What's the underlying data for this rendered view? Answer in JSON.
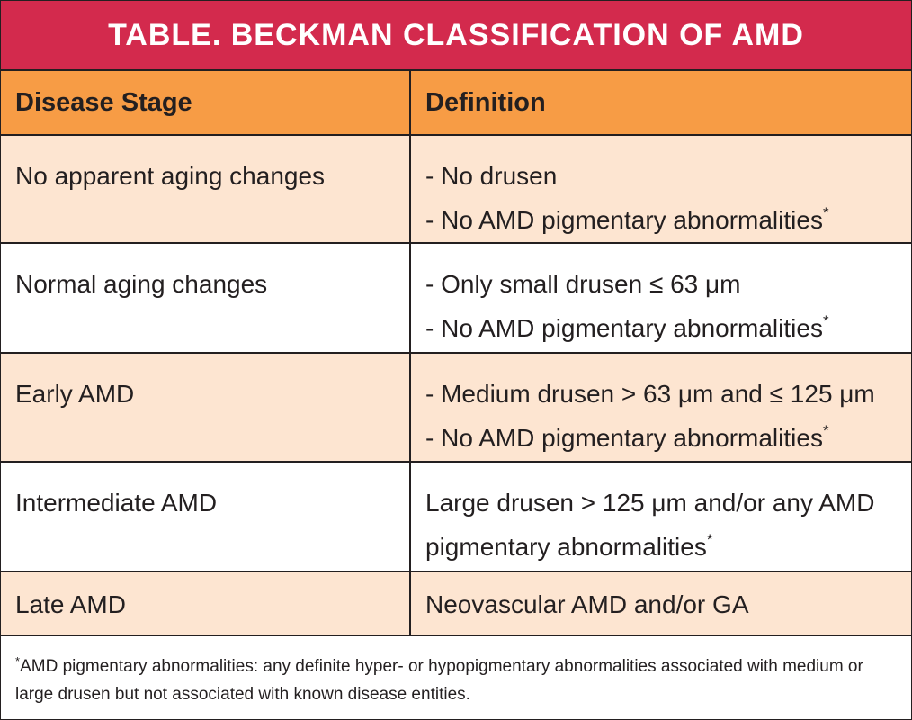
{
  "table": {
    "title": "TABLE. BECKMAN CLASSIFICATION OF AMD",
    "header": [
      "Disease Stage",
      "Definition"
    ],
    "rows": [
      {
        "stage": "No apparent aging changes",
        "definition": [
          {
            "text": "- No drusen"
          },
          {
            "text": "- No AMD pigmentary abnormalities",
            "mark": "*"
          }
        ]
      },
      {
        "stage": "Normal aging changes",
        "definition": [
          {
            "text": "- Only small drusen ≤ 63 μm"
          },
          {
            "text": "- No AMD pigmentary abnormalities",
            "mark": "*"
          }
        ]
      },
      {
        "stage": "Early AMD",
        "definition": [
          {
            "text": "- Medium drusen > 63 μm and ≤ 125 μm"
          },
          {
            "text": "- No AMD pigmentary abnormalities",
            "mark": "*"
          }
        ]
      },
      {
        "stage": "Intermediate AMD",
        "definition": [
          {
            "text": "Large drusen > 125 μm and/or any AMD pigmentary abnormalities",
            "mark": "*"
          }
        ]
      },
      {
        "stage": "Late AMD",
        "definition": [
          {
            "text": "Neovascular AMD and/or GA"
          }
        ]
      }
    ],
    "footnote": {
      "mark": "*",
      "text": "AMD pigmentary abnormalities: any definite hyper- or hypopigmentary abnormalities associated with medium or large drusen but not associated with known disease entities."
    }
  }
}
